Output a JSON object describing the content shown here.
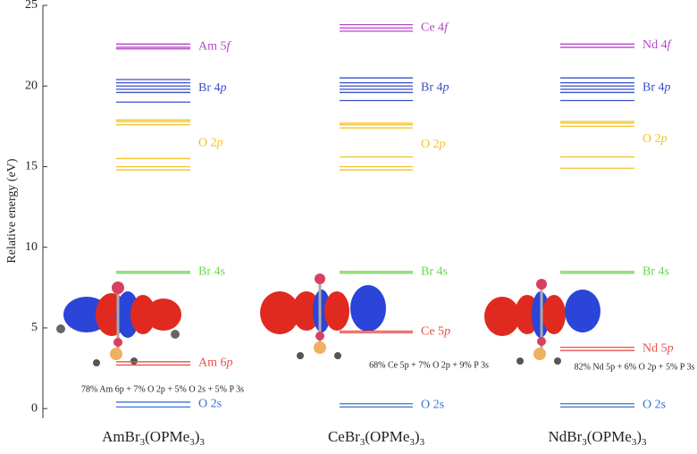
{
  "chart_data": {
    "type": "levels",
    "y_label": "Relative energy (eV)",
    "ylim": [
      -0.6,
      25
    ],
    "yticks": [
      0,
      5,
      10,
      15,
      20,
      25
    ],
    "groups": [
      {
        "name": [
          "AmBr",
          "3",
          "(OPMe",
          "3",
          ")",
          "3"
        ],
        "annotation": "78% Am 6p + 7% O 2p + 5% O 2s + 5% P 3s",
        "bands": [
          {
            "label": [
              "Am 5",
              "f"
            ],
            "color": "#b545c8",
            "values": [
              22.6,
              22.4,
              22.3
            ]
          },
          {
            "label": [
              "Br 4",
              "p"
            ],
            "color": "#3b4fc4",
            "values": [
              20.4,
              20.2,
              20.0,
              19.8,
              19.6,
              19.0
            ]
          },
          {
            "label": [
              "O 2",
              "p"
            ],
            "color": "#f2c22a",
            "values": [
              17.9,
              17.8,
              17.6,
              15.5,
              15.0,
              14.8
            ]
          },
          {
            "label": [
              "Br 4s"
            ],
            "color": "#6ad84a",
            "values": [
              8.5,
              8.4
            ]
          },
          {
            "label": [
              "Am 6",
              "p"
            ],
            "color": "#e8504a",
            "values": [
              2.9,
              2.7
            ]
          },
          {
            "label": [
              "O 2s"
            ],
            "color": "#3a72cc",
            "values": [
              0.4,
              0.1
            ]
          }
        ]
      },
      {
        "name": [
          "CeBr",
          "3",
          "(OPMe",
          "3",
          ")",
          "3"
        ],
        "annotation": "68% Ce 5p + 7% O 2p + 9% P 3s",
        "bands": [
          {
            "label": [
              "Ce 4",
              "f"
            ],
            "color": "#b545c8",
            "values": [
              23.8,
              23.6,
              23.4
            ]
          },
          {
            "label": [
              "Br 4",
              "p"
            ],
            "color": "#3b4fc4",
            "values": [
              20.5,
              20.2,
              20.0,
              19.8,
              19.6,
              19.1
            ]
          },
          {
            "label": [
              "O 2",
              "p"
            ],
            "color": "#f2c22a",
            "values": [
              17.7,
              17.6,
              17.4,
              15.6,
              15.0,
              14.8
            ]
          },
          {
            "label": [
              "Br 4s"
            ],
            "color": "#6ad84a",
            "values": [
              8.5,
              8.4
            ]
          },
          {
            "label": [
              "Ce 5",
              "p"
            ],
            "color": "#e8504a",
            "values": [
              4.8,
              4.7
            ]
          },
          {
            "label": [
              "O 2s"
            ],
            "color": "#3a72cc",
            "values": [
              0.3,
              0.1
            ]
          }
        ]
      },
      {
        "name": [
          "NdBr",
          "3",
          "(OPMe",
          "3",
          ")",
          "3"
        ],
        "annotation": "82% Nd 5p + 6% O 2p +  5% P 3s",
        "bands": [
          {
            "label": [
              "Nd 4",
              "f"
            ],
            "color": "#b545c8",
            "values": [
              22.6,
              22.4
            ]
          },
          {
            "label": [
              "Br 4",
              "p"
            ],
            "color": "#3b4fc4",
            "values": [
              20.5,
              20.2,
              20.0,
              19.8,
              19.6,
              19.1
            ]
          },
          {
            "label": [
              "O 2",
              "p"
            ],
            "color": "#f2c22a",
            "values": [
              17.8,
              17.7,
              17.5,
              15.6,
              14.9
            ]
          },
          {
            "label": [
              "Br 4s"
            ],
            "color": "#6ad84a",
            "values": [
              8.5,
              8.4
            ]
          },
          {
            "label": [
              "Nd 5",
              "p"
            ],
            "color": "#e8504a",
            "values": [
              3.8,
              3.6
            ]
          },
          {
            "label": [
              "O 2s"
            ],
            "color": "#3a72cc",
            "values": [
              0.3,
              0.1
            ]
          }
        ]
      }
    ]
  }
}
